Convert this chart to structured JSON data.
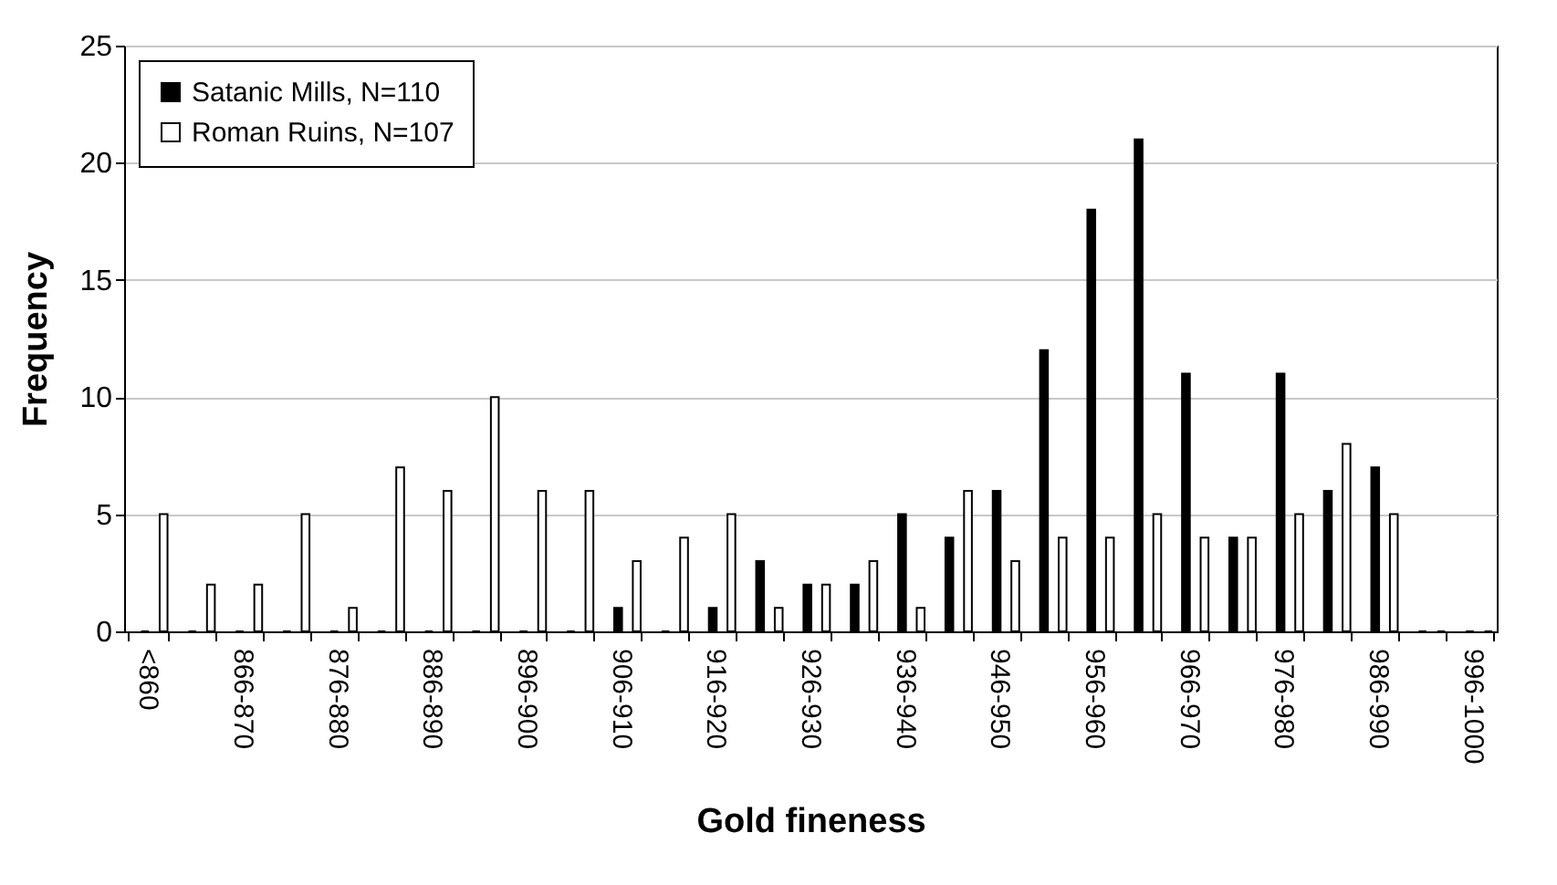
{
  "chart_data": {
    "type": "bar",
    "xlabel": "Gold fineness",
    "ylabel": "Frequency",
    "categories": [
      "<860",
      null,
      "866-870",
      null,
      "876-880",
      null,
      "886-890",
      null,
      "896-900",
      null,
      "906-910",
      null,
      "916-920",
      null,
      "926-930",
      null,
      "936-940",
      null,
      "946-950",
      null,
      "956-960",
      null,
      "966-970",
      null,
      "976-980",
      null,
      "986-990",
      null,
      "996-1000"
    ],
    "series": [
      {
        "name": "Satanic Mills, N=110",
        "color": "#000000",
        "values": [
          0,
          0,
          0,
          0,
          0,
          0,
          0,
          0,
          0,
          0,
          1,
          0,
          1,
          3,
          2,
          2,
          5,
          4,
          6,
          12,
          18,
          21,
          11,
          4,
          11,
          6,
          7,
          0,
          0
        ]
      },
      {
        "name": "Roman Ruins, N=107",
        "color": "#ffffff",
        "values": [
          5,
          2,
          2,
          5,
          1,
          7,
          6,
          10,
          6,
          6,
          3,
          4,
          5,
          1,
          2,
          3,
          1,
          6,
          3,
          4,
          4,
          5,
          4,
          4,
          5,
          8,
          5,
          0,
          0
        ]
      }
    ],
    "ylim": [
      0,
      25
    ],
    "yticks": [
      0,
      5,
      10,
      15,
      20,
      25
    ],
    "grid": "y",
    "legend": "top left"
  }
}
